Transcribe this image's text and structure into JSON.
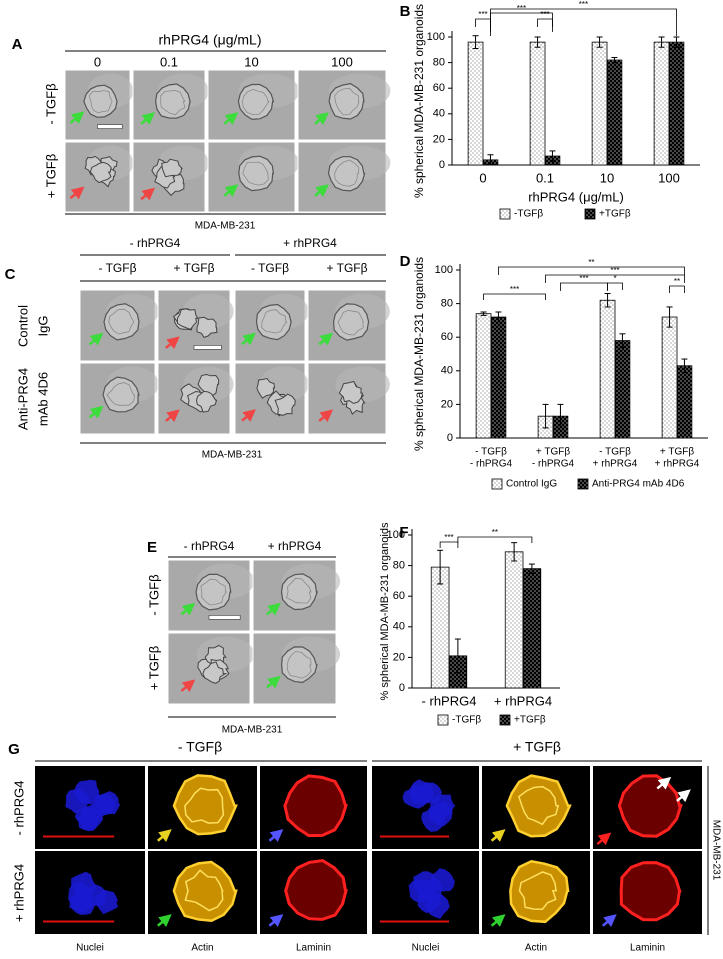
{
  "panel_a": {
    "label": "A",
    "title": "rhPRG4 (μg/mL)",
    "columns": [
      "0",
      "0.1",
      "10",
      "100"
    ],
    "rows": [
      "- TGFβ",
      "+ TGFβ"
    ],
    "cell_line": "MDA-MB-231"
  },
  "panel_c": {
    "label": "C",
    "groups": [
      "- rhPRG4",
      "+ rhPRG4"
    ],
    "columns": [
      "- TGFβ",
      "+ TGFβ",
      "- TGFβ",
      "+ TGFβ"
    ],
    "rows": [
      [
        "Control",
        "IgG"
      ],
      [
        "Anti-PRG4",
        "mAb 4D6"
      ]
    ],
    "cell_line": "MDA-MB-231"
  },
  "panel_e": {
    "label": "E",
    "columns": [
      "- rhPRG4",
      "+ rhPRG4"
    ],
    "rows": [
      "- TGFβ",
      "+ TGFβ"
    ],
    "cell_line": "MDA-MB-231"
  },
  "panel_g": {
    "label": "G",
    "groups": [
      "- TGFβ",
      "+ TGFβ"
    ],
    "rows": [
      "- rhPRG4",
      "+ rhPRG4"
    ],
    "channels": [
      "Nuclei",
      "Actin",
      "Laminin",
      "Nuclei",
      "Actin",
      "Laminin"
    ],
    "cell_line": "MDA-MB-231"
  },
  "chart_data": [
    {
      "panel": "B",
      "type": "bar",
      "ylabel": "% spherical MDA-MB-231 organoids",
      "xlabel": "rhPRG4 (μg/mL)",
      "categories": [
        "0",
        "0.1",
        "10",
        "100"
      ],
      "series": [
        {
          "name": "-TGFβ",
          "color": "#ffffff",
          "values": [
            96,
            96,
            96,
            96
          ],
          "errors": [
            5,
            4,
            4,
            4
          ]
        },
        {
          "name": "+TGFβ",
          "color": "#000000",
          "values": [
            4,
            7,
            82,
            96
          ],
          "errors": [
            4,
            4,
            2,
            4
          ]
        }
      ],
      "ylim": [
        0,
        100
      ],
      "yticks": [
        0,
        20,
        40,
        60,
        80,
        100
      ],
      "annotations": [
        {
          "text": "***",
          "from": [
            0,
            0
          ],
          "to": [
            0,
            1
          ]
        },
        {
          "text": "***",
          "from": [
            1,
            0
          ],
          "to": [
            1,
            1
          ]
        },
        {
          "text": "***",
          "from": [
            0,
            1
          ],
          "to": [
            1,
            1
          ]
        },
        {
          "text": "***",
          "from": [
            0,
            1
          ],
          "to": [
            3,
            1
          ]
        }
      ]
    },
    {
      "panel": "D",
      "type": "bar",
      "ylabel": "% spherical MDA-MB-231 organoids",
      "categories": [
        [
          "- TGFβ",
          "- rhPRG4"
        ],
        [
          "+ TGFβ",
          "- rhPRG4"
        ],
        [
          "- TGFβ",
          "+ rhPRG4"
        ],
        [
          "+ TGFβ",
          "+ rhPRG4"
        ]
      ],
      "series": [
        {
          "name": "Control IgG",
          "color": "#ffffff",
          "values": [
            74,
            13,
            82,
            72
          ],
          "errors": [
            1,
            7,
            4,
            6
          ]
        },
        {
          "name": "Anti-PRG4 mAb 4D6",
          "color": "#000000",
          "values": [
            72,
            13,
            58,
            43
          ],
          "errors": [
            3,
            7,
            4,
            4
          ]
        }
      ],
      "ylim": [
        0,
        100
      ],
      "yticks": [
        0,
        20,
        40,
        60,
        80,
        100
      ],
      "annotations": [
        {
          "text": "***",
          "from": [
            0,
            0
          ],
          "to": [
            1,
            0
          ]
        },
        {
          "text": "***",
          "from": [
            1,
            1
          ],
          "to": [
            2,
            0
          ]
        },
        {
          "text": "***",
          "from": [
            1,
            0
          ],
          "to": [
            3,
            1
          ]
        },
        {
          "text": "**",
          "from": [
            0,
            1
          ],
          "to": [
            3,
            1
          ]
        },
        {
          "text": "*",
          "from": [
            2,
            0
          ],
          "to": [
            2,
            1
          ]
        },
        {
          "text": "**",
          "from": [
            3,
            0
          ],
          "to": [
            3,
            1
          ]
        }
      ]
    },
    {
      "panel": "F",
      "type": "bar",
      "ylabel": "% spherical MDA-MB-231 organoids",
      "categories": [
        "- rhPRG4",
        "+ rhPRG4"
      ],
      "series": [
        {
          "name": "-TGFβ",
          "color": "#ffffff",
          "values": [
            79,
            89
          ],
          "errors": [
            11,
            6
          ]
        },
        {
          "name": "+TGFβ",
          "color": "#000000",
          "values": [
            21,
            78
          ],
          "errors": [
            11,
            3
          ]
        }
      ],
      "ylim": [
        0,
        100
      ],
      "yticks": [
        0,
        20,
        40,
        60,
        80,
        100
      ],
      "annotations": [
        {
          "text": "***",
          "from": [
            0,
            0
          ],
          "to": [
            0,
            1
          ]
        },
        {
          "text": "**",
          "from": [
            0,
            1
          ],
          "to": [
            1,
            1
          ]
        }
      ]
    }
  ]
}
